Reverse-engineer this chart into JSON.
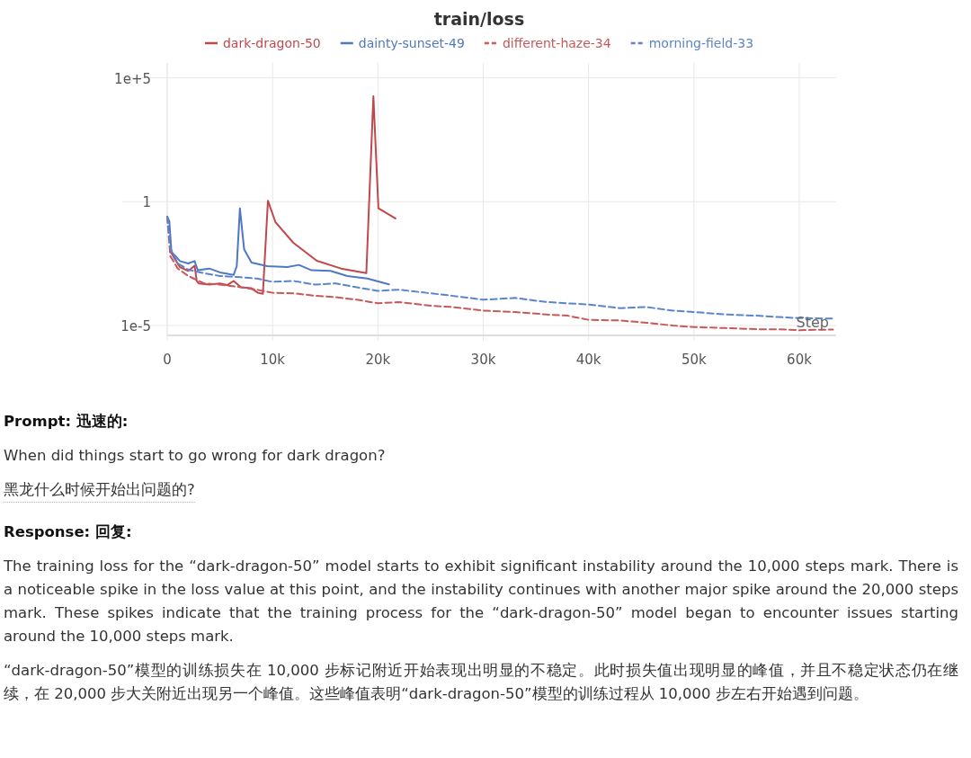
{
  "chart_data": {
    "type": "line",
    "title": "train/loss",
    "xlabel": "Step",
    "log": "y",
    "grid": true,
    "legend": "top",
    "xlim": [
      0,
      63500
    ],
    "xticks": [
      0,
      {
        "value": 10000,
        "label": "10k"
      },
      {
        "value": 20000,
        "label": "20k"
      },
      {
        "value": 30000,
        "label": "30k"
      },
      {
        "value": 40000,
        "label": "40k"
      },
      {
        "value": 50000,
        "label": "50k"
      },
      {
        "value": 60000,
        "label": "60k"
      }
    ],
    "ylim": [
      4e-06,
      400000
    ],
    "yticks": [
      {
        "value": 1e-05,
        "label": "1e-5"
      },
      1,
      {
        "value": 100000,
        "label": "1e+5"
      }
    ],
    "series": [
      {
        "name": "dark-dragon-50",
        "color": "#c0484b",
        "line_style": "solid",
        "x": [
          350,
          700,
          1200,
          2000,
          2600,
          2800,
          3000,
          4000,
          5000,
          5700,
          6300,
          7000,
          8000,
          8600,
          9080,
          9560,
          10270,
          11970,
          14200,
          16500,
          18900,
          19570,
          20050,
          21660
        ],
        "values": [
          0.0093,
          0.005,
          0.0023,
          0.0016,
          0.0026,
          0.00063,
          0.0005,
          0.00045,
          0.0005,
          0.00043,
          0.00063,
          0.00035,
          0.00032,
          0.00021,
          0.00019,
          1.1,
          0.15,
          0.022,
          0.0041,
          0.002,
          0.0013,
          18000,
          0.54,
          0.21
        ]
      },
      {
        "name": "dainty-sunset-49",
        "color": "#4f78c4",
        "line_style": "solid",
        "x": [
          0,
          200,
          400,
          800,
          1200,
          2000,
          2600,
          2900,
          4000,
          5000,
          6300,
          6600,
          6900,
          7300,
          8000,
          9500,
          11400,
          12500,
          13700,
          15500,
          17100,
          19000,
          21050
        ],
        "values": [
          0.25,
          0.16,
          0.0093,
          0.0063,
          0.004,
          0.0032,
          0.004,
          0.0017,
          0.002,
          0.0014,
          0.0011,
          0.0025,
          0.54,
          0.012,
          0.0035,
          0.0025,
          0.0023,
          0.0028,
          0.0017,
          0.0016,
          0.001,
          0.00079,
          0.00046
        ]
      },
      {
        "name": "different-haze-34",
        "color": "#c8585a",
        "line_style": "dashed",
        "x": [
          0,
          300,
          1000,
          2000,
          3500,
          5000,
          7000,
          8500,
          10000,
          12000,
          14000,
          16000,
          18000,
          20000,
          22000,
          25000,
          27000,
          30000,
          33000,
          36000,
          38000,
          40000,
          43000,
          45500,
          48000,
          50000,
          53000,
          56000,
          58000,
          60000,
          63200
        ],
        "values": [
          0.25,
          0.0063,
          0.002,
          0.001,
          0.0005,
          0.00045,
          0.00035,
          0.00028,
          0.00021,
          0.0002,
          0.00016,
          0.00014,
          0.00011,
          7.9e-05,
          8.9e-05,
          6.3e-05,
          5.6e-05,
          4e-05,
          3.5e-05,
          2.8e-05,
          2.5e-05,
          1.7e-05,
          1.6e-05,
          1.3e-05,
          1e-05,
          8.7e-06,
          7.9e-06,
          7.1e-06,
          7.1e-06,
          6.5e-06,
          6.9e-06
        ]
      },
      {
        "name": "morning-field-33",
        "color": "#5a84cc",
        "line_style": "dashed",
        "x": [
          0,
          300,
          1000,
          2000,
          3500,
          5000,
          7000,
          8500,
          10000,
          12000,
          14000,
          16000,
          18000,
          20000,
          22000,
          25000,
          27000,
          30000,
          33000,
          36000,
          38000,
          40000,
          43000,
          45500,
          48000,
          50000,
          53000,
          56000,
          58000,
          60000,
          63200
        ],
        "values": [
          0.25,
          0.013,
          0.0032,
          0.0018,
          0.0013,
          0.001,
          0.00089,
          0.00079,
          0.00058,
          0.00063,
          0.00045,
          0.0005,
          0.00035,
          0.00025,
          0.00028,
          0.0002,
          0.00016,
          0.00011,
          0.00013,
          8.9e-05,
          7.9e-05,
          7.1e-05,
          5e-05,
          5.6e-05,
          4e-05,
          3.5e-05,
          2.8e-05,
          2.5e-05,
          2.2e-05,
          2e-05,
          1.9e-05
        ]
      }
    ],
    "annotations": [
      "Prompt: 迅速的:",
      "When did things start to go wrong for dark dragon?",
      "黑龙什么时候开始出问题的?",
      "Response: 回复:",
      "The training loss for the “dark-dragon-50” model starts to exhibit significant instability around the 10,000 steps mark. There is a noticeable spike in the loss value at this point, and the instability continues with another major spike around the 20,000 steps mark. These spikes indicate that the training process for the “dark-dragon-50” model began to encounter issues starting around the 10,000 steps mark.",
      "“dark-dragon-50”模型的训练损失在 10,000 步标记附近开始表现出明显的不稳定。此时损失值出现明显的峰值，并且不稳定状态仍在继续，在 20,000 步大关附近出现另一个峰值。这些峰值表明“dark-dragon-50”模型的训练过程从 10,000 步左右开始遇到问题。"
    ]
  }
}
